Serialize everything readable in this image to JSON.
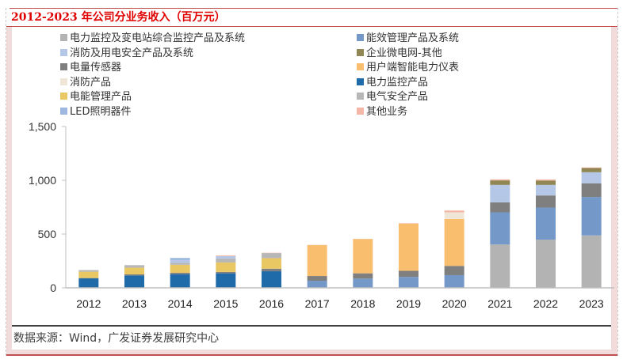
{
  "header": {
    "title": "2012-2023 年公司分业务收入（百万元）"
  },
  "footer": {
    "source": "数据来源：Wind，广发证券发展研究中心"
  },
  "chart_data": {
    "type": "bar",
    "stacked": true,
    "title": "2012-2023 年公司分业务收入（百万元）",
    "xlabel": "",
    "ylabel": "",
    "ylim": [
      0,
      1500
    ],
    "yticks": [
      0,
      500,
      1000,
      1500
    ],
    "ytick_labels": [
      "0",
      "500",
      "1,000",
      "1,500"
    ],
    "grid": false,
    "legend_position": "top",
    "categories": [
      "2012",
      "2013",
      "2014",
      "2015",
      "2016",
      "2017",
      "2018",
      "2019",
      "2020",
      "2021",
      "2022",
      "2023"
    ],
    "series": [
      {
        "name": "电力监控及变电站综合监控产品及系统",
        "color": "#b3b3b3",
        "values": [
          0,
          0,
          0,
          0,
          0,
          0,
          0,
          0,
          0,
          404,
          448,
          487
        ]
      },
      {
        "name": "能效管理产品及系统",
        "color": "#7499c9",
        "values": [
          0,
          0,
          0,
          0,
          0,
          66,
          86,
          101,
          118,
          298,
          298,
          358
        ]
      },
      {
        "name": "电力监控产品",
        "color": "#1f6aa8",
        "values": [
          88,
          115,
          127,
          135,
          154,
          0,
          0,
          0,
          0,
          0,
          0,
          0
        ]
      },
      {
        "name": "电量传感器",
        "color": "#7f7f7f",
        "values": [
          3,
          10,
          13,
          13,
          24,
          44,
          49,
          57,
          86,
          93,
          113,
          127
        ]
      },
      {
        "name": "用户端智能电力仪表",
        "color": "#f9bf6f",
        "values": [
          0,
          0,
          0,
          0,
          0,
          287,
          319,
          438,
          436,
          0,
          0,
          0
        ]
      },
      {
        "name": "电能管理产品",
        "color": "#e9c863",
        "values": [
          59,
          62,
          74,
          88,
          98,
          0,
          0,
          0,
          0,
          0,
          0,
          0
        ]
      },
      {
        "name": "电气安全产品",
        "color": "#b7b7b7",
        "values": [
          15,
          24,
          20,
          37,
          47,
          0,
          0,
          0,
          0,
          0,
          0,
          0
        ]
      },
      {
        "name": "消防及用电安全产品及系统",
        "color": "#b4c7e7",
        "values": [
          0,
          0,
          24,
          22,
          0,
          0,
          0,
          0,
          0,
          162,
          98,
          103
        ]
      },
      {
        "name": "LED照明器件",
        "color": "#9db7e0",
        "values": [
          0,
          0,
          20,
          0,
          0,
          0,
          0,
          0,
          0,
          0,
          0,
          0
        ]
      },
      {
        "name": "消防产品",
        "color": "#efe6d8",
        "values": [
          0,
          0,
          0,
          0,
          0,
          0,
          0,
          0,
          62,
          0,
          0,
          0
        ]
      },
      {
        "name": "企业微电网-其他",
        "color": "#918755",
        "values": [
          0,
          0,
          0,
          0,
          0,
          0,
          0,
          0,
          0,
          42,
          41,
          39
        ]
      },
      {
        "name": "其他业务",
        "color": "#f4b6a6",
        "values": [
          0,
          0,
          0,
          7,
          3,
          2,
          2,
          5,
          17,
          10,
          10,
          5
        ]
      }
    ],
    "legend": [
      {
        "name": "电力监控及变电站综合监控产品及系统",
        "color": "#b3b3b3"
      },
      {
        "name": "能效管理产品及系统",
        "color": "#7499c9"
      },
      {
        "name": "消防及用电安全产品及系统",
        "color": "#b4c7e7"
      },
      {
        "name": "企业微电网-其他",
        "color": "#918755"
      },
      {
        "name": "电量传感器",
        "color": "#7f7f7f"
      },
      {
        "name": "用户端智能电力仪表",
        "color": "#f9bf6f"
      },
      {
        "name": "消防产品",
        "color": "#efe6d8"
      },
      {
        "name": "电力监控产品",
        "color": "#1f6aa8"
      },
      {
        "name": "电能管理产品",
        "color": "#e9c863"
      },
      {
        "name": "电气安全产品",
        "color": "#b7b7b7"
      },
      {
        "name": "LED照明器件",
        "color": "#9db7e0"
      },
      {
        "name": "其他业务",
        "color": "#f4b6a6"
      }
    ]
  }
}
